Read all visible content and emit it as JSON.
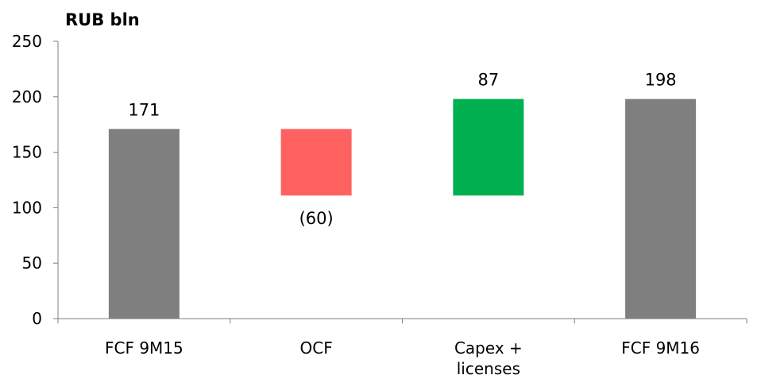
{
  "chart_data": {
    "type": "bar",
    "subtype": "waterfall",
    "unit_label": "RUB bln",
    "ylim": [
      0,
      250
    ],
    "yticks": [
      0,
      50,
      100,
      150,
      200,
      250
    ],
    "grid": false,
    "legend": "none",
    "categories": [
      {
        "label": [
          "FCF 9M15"
        ],
        "base": 0,
        "top": 171,
        "value_label": "171",
        "color": "#7f7f7f"
      },
      {
        "label": [
          "OCF"
        ],
        "base": 111,
        "top": 171,
        "value_label": "(60)",
        "color": "#ff6161"
      },
      {
        "label": [
          "Capex +",
          "licenses"
        ],
        "base": 111,
        "top": 198,
        "value_label": "87",
        "color": "#00b050"
      },
      {
        "label": [
          "FCF 9M16"
        ],
        "base": 0,
        "top": 198,
        "value_label": "198",
        "color": "#7f7f7f"
      }
    ]
  }
}
